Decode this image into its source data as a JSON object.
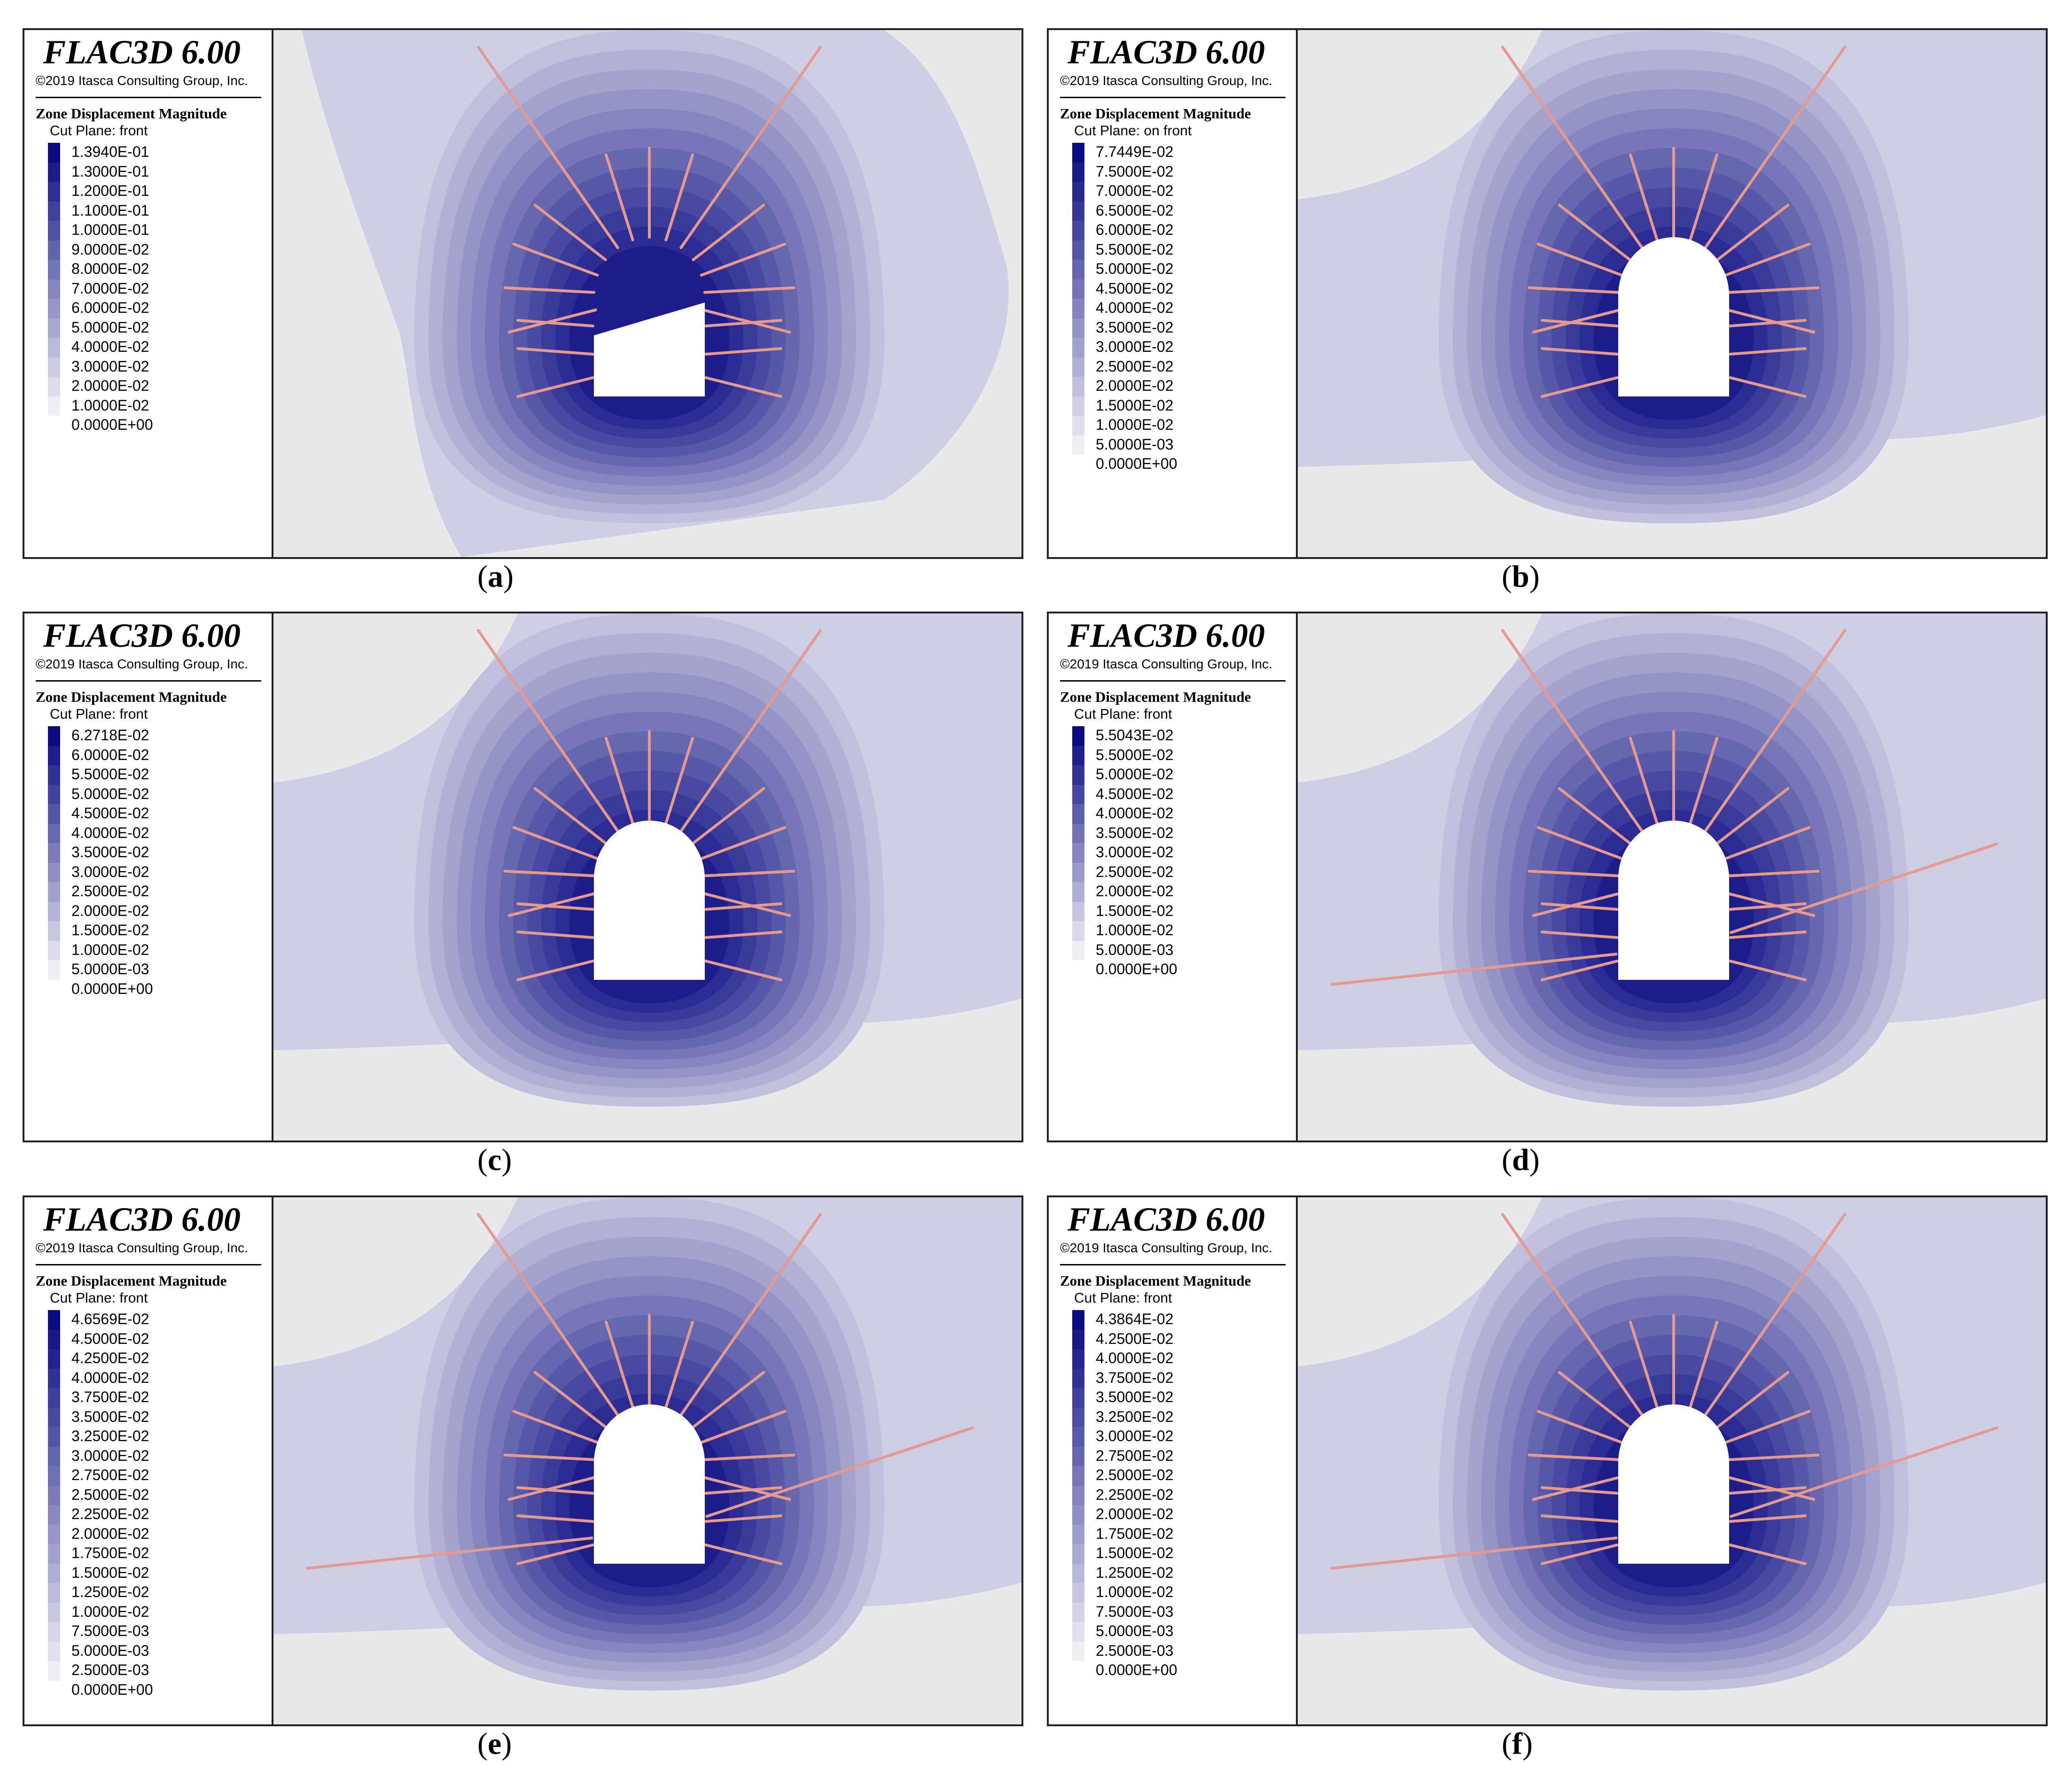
{
  "panels": [
    {
      "id": "a",
      "title": "FLAC3D 6.00",
      "copyright": "©2019 Itasca Consulting Group, Inc.",
      "legend_heading": "Zone Displacement Magnitude",
      "cut_plane": "Cut Plane: front",
      "scale": [
        "1.3940E-01",
        "1.3000E-01",
        "1.2000E-01",
        "1.1000E-01",
        "1.0000E-01",
        "9.0000E-02",
        "8.0000E-02",
        "7.0000E-02",
        "6.0000E-02",
        "5.0000E-02",
        "4.0000E-02",
        "3.0000E-02",
        "2.0000E-02",
        "1.0000E-02",
        "0.0000E+00"
      ],
      "caption": "a",
      "tunnel": "trapezoid",
      "long_bolts": false
    },
    {
      "id": "b",
      "title": "FLAC3D 6.00",
      "copyright": "©2019 Itasca Consulting Group, Inc.",
      "legend_heading": "Zone Displacement Magnitude",
      "cut_plane": "Cut Plane: on front",
      "scale": [
        "7.7449E-02",
        "7.5000E-02",
        "7.0000E-02",
        "6.5000E-02",
        "6.0000E-02",
        "5.5000E-02",
        "5.0000E-02",
        "4.5000E-02",
        "4.0000E-02",
        "3.5000E-02",
        "3.0000E-02",
        "2.5000E-02",
        "2.0000E-02",
        "1.5000E-02",
        "1.0000E-02",
        "5.0000E-03",
        "0.0000E+00"
      ],
      "caption": "b",
      "tunnel": "arch",
      "long_bolts": false
    },
    {
      "id": "c",
      "title": "FLAC3D 6.00",
      "copyright": "©2019 Itasca Consulting Group, Inc.",
      "legend_heading": "Zone Displacement Magnitude",
      "cut_plane": "Cut Plane: front",
      "scale": [
        "6.2718E-02",
        "6.0000E-02",
        "5.5000E-02",
        "5.0000E-02",
        "4.5000E-02",
        "4.0000E-02",
        "3.5000E-02",
        "3.0000E-02",
        "2.5000E-02",
        "2.0000E-02",
        "1.5000E-02",
        "1.0000E-02",
        "5.0000E-03",
        "0.0000E+00"
      ],
      "caption": "c",
      "tunnel": "arch",
      "long_bolts": false
    },
    {
      "id": "d",
      "title": "FLAC3D 6.00",
      "copyright": "©2019 Itasca Consulting Group, Inc.",
      "legend_heading": "Zone Displacement Magnitude",
      "cut_plane": "Cut Plane: front",
      "scale": [
        "5.5043E-02",
        "5.5000E-02",
        "5.0000E-02",
        "4.5000E-02",
        "4.0000E-02",
        "3.5000E-02",
        "3.0000E-02",
        "2.5000E-02",
        "2.0000E-02",
        "1.5000E-02",
        "1.0000E-02",
        "5.0000E-03",
        "0.0000E+00"
      ],
      "caption": "d",
      "tunnel": "arch",
      "long_bolts": true
    },
    {
      "id": "e",
      "title": "FLAC3D 6.00",
      "copyright": "©2019 Itasca Consulting Group, Inc.",
      "legend_heading": "Zone Displacement Magnitude",
      "cut_plane": "Cut Plane: front",
      "scale": [
        "4.6569E-02",
        "4.5000E-02",
        "4.2500E-02",
        "4.0000E-02",
        "3.7500E-02",
        "3.5000E-02",
        "3.2500E-02",
        "3.0000E-02",
        "2.7500E-02",
        "2.5000E-02",
        "2.2500E-02",
        "2.0000E-02",
        "1.7500E-02",
        "1.5000E-02",
        "1.2500E-02",
        "1.0000E-02",
        "7.5000E-03",
        "5.0000E-03",
        "2.5000E-03",
        "0.0000E+00"
      ],
      "caption": "e",
      "tunnel": "arch",
      "long_bolts": true
    },
    {
      "id": "f",
      "title": "FLAC3D 6.00",
      "copyright": "©2019 Itasca Consulting Group, Inc.",
      "legend_heading": "Zone Displacement Magnitude",
      "cut_plane": "Cut Plane: front",
      "scale": [
        "4.3864E-02",
        "4.2500E-02",
        "4.0000E-02",
        "3.7500E-02",
        "3.5000E-02",
        "3.2500E-02",
        "3.0000E-02",
        "2.7500E-02",
        "2.5000E-02",
        "2.2500E-02",
        "2.0000E-02",
        "1.7500E-02",
        "1.5000E-02",
        "1.2500E-02",
        "1.0000E-02",
        "7.5000E-03",
        "5.0000E-03",
        "2.5000E-03",
        "0.0000E+00"
      ],
      "caption": "f",
      "tunnel": "arch",
      "long_bolts": true
    }
  ],
  "colors": {
    "max": "#0a0a82",
    "min": "#eeeef4",
    "background": "#e9e9ec",
    "bolt": "#e59a8f",
    "border": "#222222"
  }
}
